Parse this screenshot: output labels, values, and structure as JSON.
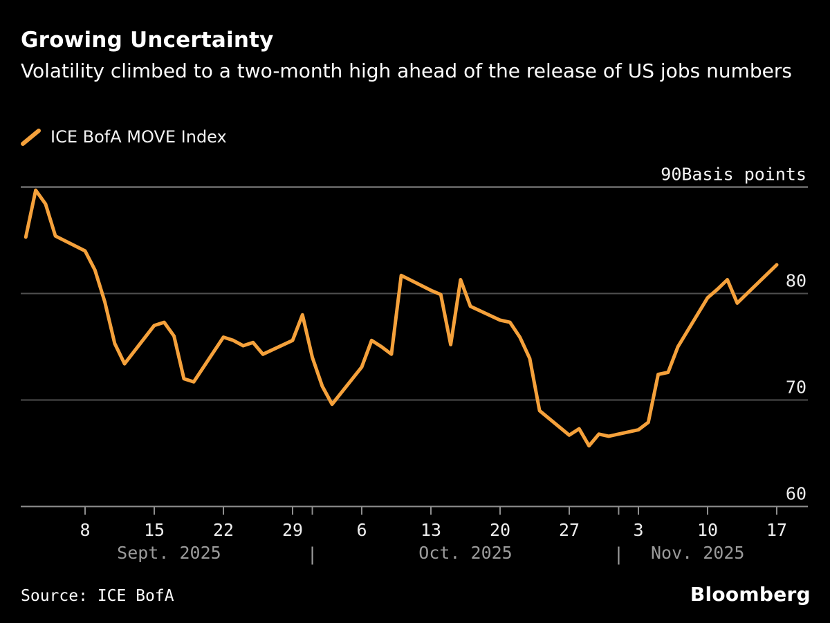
{
  "header": {
    "title": "Growing Uncertainty",
    "subtitle": "Volatility climbed to a two-month high ahead of the release of US jobs numbers"
  },
  "legend": {
    "label": "ICE BofA MOVE Index"
  },
  "footer": {
    "source": "Source: ICE BofA",
    "brand": "Bloomberg"
  },
  "colors": {
    "background": "#000000",
    "line": "#F5A13B",
    "grid_minor": "#4f4f4f",
    "grid_frame": "#8e8e8e",
    "tick_label": "#ededed",
    "unit_label": "#f5f5f5",
    "month_label": "#9a9a9a",
    "title_text": "#ffffff"
  },
  "chart_data": {
    "type": "line",
    "title": "Growing Uncertainty",
    "ylabel": "Basis points",
    "legend_position": "top-left",
    "grid": true,
    "y_axis": {
      "min": 57.5,
      "max": 91,
      "gridlines": [
        90,
        80,
        70,
        60
      ],
      "tick_labels": [
        {
          "value": 90,
          "label": "90Basis points"
        },
        {
          "value": 80,
          "label": "80"
        },
        {
          "value": 70,
          "label": "70"
        },
        {
          "value": 60,
          "label": "60"
        }
      ]
    },
    "x_axis": {
      "ticks": [
        {
          "date": "2025-09-08",
          "label": "8"
        },
        {
          "date": "2025-09-15",
          "label": "15"
        },
        {
          "date": "2025-09-22",
          "label": "22"
        },
        {
          "date": "2025-09-29",
          "label": "29"
        },
        {
          "date": "2025-10-06",
          "label": "6"
        },
        {
          "date": "2025-10-13",
          "label": "13"
        },
        {
          "date": "2025-10-20",
          "label": "20"
        },
        {
          "date": "2025-10-27",
          "label": "27"
        },
        {
          "date": "2025-11-03",
          "label": "3"
        },
        {
          "date": "2025-11-10",
          "label": "10"
        },
        {
          "date": "2025-11-17",
          "label": "17"
        }
      ],
      "month_boundary_ticks": [
        "2025-10-01",
        "2025-11-01"
      ],
      "separators": [
        "2025-10-01",
        "2025-11-01"
      ],
      "month_labels": [
        {
          "label": "Sept. 2025",
          "start": "2025-09-02",
          "end": "2025-10-01"
        },
        {
          "label": "Oct. 2025",
          "start": "2025-10-01",
          "end": "2025-11-01"
        },
        {
          "label": "Nov. 2025",
          "start": "2025-11-01",
          "end": "2025-11-17"
        }
      ]
    },
    "series": [
      {
        "name": "ICE BofA MOVE Index",
        "color": "#F5A13B",
        "points": [
          {
            "date": "2025-09-02",
            "value": 85.3
          },
          {
            "date": "2025-09-03",
            "value": 89.7
          },
          {
            "date": "2025-09-04",
            "value": 88.4
          },
          {
            "date": "2025-09-05",
            "value": 85.4
          },
          {
            "date": "2025-09-08",
            "value": 84.0
          },
          {
            "date": "2025-09-09",
            "value": 82.2
          },
          {
            "date": "2025-09-10",
            "value": 79.2
          },
          {
            "date": "2025-09-11",
            "value": 75.3
          },
          {
            "date": "2025-09-12",
            "value": 73.4
          },
          {
            "date": "2025-09-15",
            "value": 77.0
          },
          {
            "date": "2025-09-16",
            "value": 77.3
          },
          {
            "date": "2025-09-17",
            "value": 76.0
          },
          {
            "date": "2025-09-18",
            "value": 72.0
          },
          {
            "date": "2025-09-19",
            "value": 71.7
          },
          {
            "date": "2025-09-22",
            "value": 75.9
          },
          {
            "date": "2025-09-23",
            "value": 75.6
          },
          {
            "date": "2025-09-24",
            "value": 75.1
          },
          {
            "date": "2025-09-25",
            "value": 75.4
          },
          {
            "date": "2025-09-26",
            "value": 74.3
          },
          {
            "date": "2025-09-29",
            "value": 75.6
          },
          {
            "date": "2025-09-30",
            "value": 78.0
          },
          {
            "date": "2025-10-01",
            "value": 74.0
          },
          {
            "date": "2025-10-02",
            "value": 71.3
          },
          {
            "date": "2025-10-03",
            "value": 69.6
          },
          {
            "date": "2025-10-06",
            "value": 73.1
          },
          {
            "date": "2025-10-07",
            "value": 75.6
          },
          {
            "date": "2025-10-08",
            "value": 75.0
          },
          {
            "date": "2025-10-09",
            "value": 74.3
          },
          {
            "date": "2025-10-10",
            "value": 81.7
          },
          {
            "date": "2025-10-13",
            "value": 80.3
          },
          {
            "date": "2025-10-14",
            "value": 79.9
          },
          {
            "date": "2025-10-15",
            "value": 75.2
          },
          {
            "date": "2025-10-16",
            "value": 81.3
          },
          {
            "date": "2025-10-17",
            "value": 78.8
          },
          {
            "date": "2025-10-20",
            "value": 77.5
          },
          {
            "date": "2025-10-21",
            "value": 77.3
          },
          {
            "date": "2025-10-22",
            "value": 75.9
          },
          {
            "date": "2025-10-23",
            "value": 73.9
          },
          {
            "date": "2025-10-24",
            "value": 69.0
          },
          {
            "date": "2025-10-27",
            "value": 66.7
          },
          {
            "date": "2025-10-28",
            "value": 67.3
          },
          {
            "date": "2025-10-29",
            "value": 65.7
          },
          {
            "date": "2025-10-30",
            "value": 66.8
          },
          {
            "date": "2025-10-31",
            "value": 66.6
          },
          {
            "date": "2025-11-03",
            "value": 67.2
          },
          {
            "date": "2025-11-04",
            "value": 67.9
          },
          {
            "date": "2025-11-05",
            "value": 72.4
          },
          {
            "date": "2025-11-06",
            "value": 72.6
          },
          {
            "date": "2025-11-07",
            "value": 75.0
          },
          {
            "date": "2025-11-10",
            "value": 79.6
          },
          {
            "date": "2025-11-11",
            "value": 80.4
          },
          {
            "date": "2025-11-12",
            "value": 81.3
          },
          {
            "date": "2025-11-13",
            "value": 79.1
          },
          {
            "date": "2025-11-14",
            "value": 80.0
          },
          {
            "date": "2025-11-17",
            "value": 82.7
          }
        ]
      }
    ]
  }
}
